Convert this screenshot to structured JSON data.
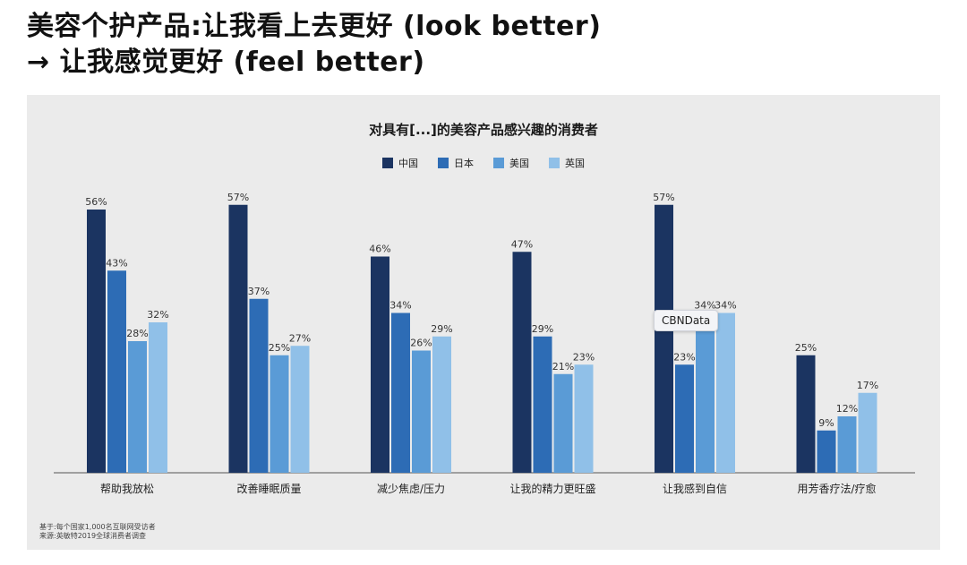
{
  "headline": {
    "line1": "美容个护产品:让我看上去更好 (look better)",
    "line2": "→ 让我感觉更好 (feel better)"
  },
  "chart_data": {
    "type": "bar",
    "title": "对具有[...]的美容产品感兴趣的消费者",
    "categories": [
      "帮助我放松",
      "改善睡眠质量",
      "减少焦虑/压力",
      "让我的精力更旺盛",
      "让我感到自信",
      "用芳香疗法/疗愈"
    ],
    "series": [
      {
        "name": "中国",
        "color": "#1b3461",
        "values": [
          56,
          57,
          46,
          47,
          57,
          25
        ]
      },
      {
        "name": "日本",
        "color": "#2d6cb5",
        "values": [
          43,
          37,
          34,
          29,
          23,
          9
        ]
      },
      {
        "name": "美国",
        "color": "#5a9bd6",
        "values": [
          28,
          25,
          26,
          21,
          34,
          12
        ]
      },
      {
        "name": "英国",
        "color": "#90c0e8",
        "values": [
          32,
          27,
          29,
          23,
          34,
          17
        ]
      }
    ],
    "value_suffix": "%",
    "ylim": [
      0,
      60
    ],
    "legend": "top-center",
    "grid": false
  },
  "watermark": "CBNData",
  "footnote": {
    "line1": "基于:每个国家1,000名互联网受访者",
    "line2": "来源:英敏特2019全球消费者调查"
  }
}
